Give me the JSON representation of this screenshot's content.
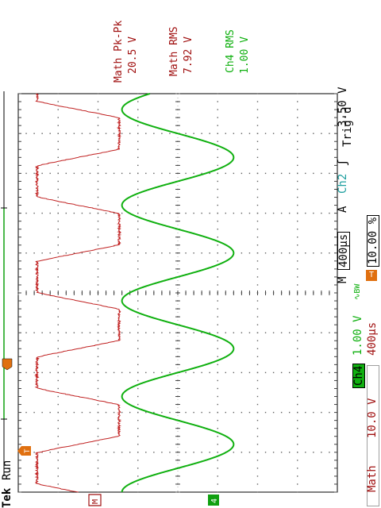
{
  "status": {
    "tek": "Tek",
    "run": "Run",
    "trig": "Trig'd"
  },
  "measurements": [
    {
      "name": "Math Pk-Pk",
      "value": "20.5 V",
      "color": "#a01010"
    },
    {
      "name": "Math RMS",
      "value": "7.92 V",
      "color": "#a01010"
    },
    {
      "name": "Ch4 RMS",
      "value": "1.00 V",
      "color": "#10b010"
    }
  ],
  "channels": {
    "ch4": {
      "label": "Ch4",
      "scale": "1.00 V",
      "bw_symbol": "∿BW",
      "color": "#10b010"
    },
    "math": {
      "label": "Math",
      "scale": "10.0 V",
      "time": "400µs",
      "color": "#a01010"
    }
  },
  "timebase": {
    "mode": "M",
    "value": "400µs",
    "trigger_source_prefix": "A",
    "trigger_source": "Ch2",
    "trigger_slope": "ʃ",
    "trigger_level": "3.50 V",
    "trigger_position": "10.00 %"
  },
  "markers": {
    "math_ref": "M",
    "ch4_ref": "4",
    "trigger": "T"
  },
  "chart_data": {
    "type": "line",
    "title": "",
    "xlabel": "",
    "ylabel": "",
    "time_per_div_us": 400,
    "x_divisions": 10,
    "y_divisions": 8,
    "series": [
      {
        "name": "Ch4",
        "waveform": "sine",
        "volts_per_div": 1.0,
        "offset_div": 0.0,
        "amplitude_div": 1.4,
        "period_div": 2.4,
        "phase_div": 0.0,
        "color": "#10b010"
      },
      {
        "name": "Math",
        "waveform": "clipped-trapezoid",
        "volts_per_div": 10.0,
        "offset_div": 2.5,
        "amplitude_div": 1.03,
        "period_div": 2.4,
        "phase_div": 0.6,
        "color": "#c02020"
      }
    ],
    "grid": true
  }
}
